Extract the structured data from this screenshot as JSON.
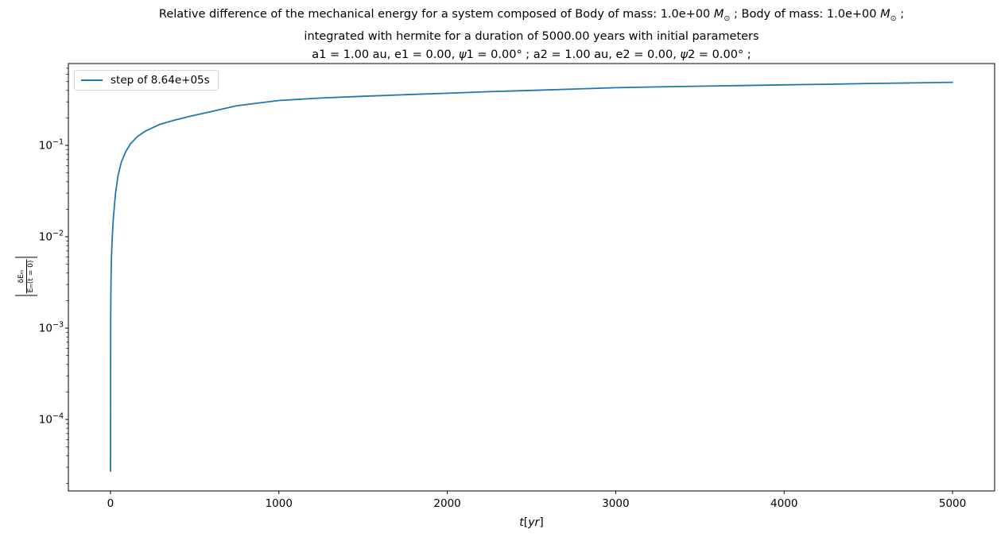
{
  "figure": {
    "title": {
      "line1_pre": "Relative difference of the mechanical energy for a system composed of Body of mass: 1.0e+00 ",
      "line1_msun1": "M",
      "line1_sun1": "⊙",
      "line1_mid": " ; Body of mass: 1.0e+00 ",
      "line1_msun2": "M",
      "line1_sun2": "⊙",
      "line1_end": " ;",
      "line2": "integrated with hermite for a duration of 5000.00 years with initial parameters",
      "line3_seg1": "a1 = 1.00 au, e1 = 0.00, ",
      "line3_psi1": "ψ",
      "line3_seg2": "1 = 0.00° ; a2 = 1.00 au, e2 = 0.00, ",
      "line3_psi2": "ψ",
      "line3_seg3": "2 = 0.00° ;"
    },
    "xlabel": {
      "t": "t",
      "open": "[",
      "yr": "yr",
      "close": "]"
    },
    "ylabel": {
      "num": "δEₘ",
      "den": "Eₘ(t = 0)"
    },
    "legend": {
      "label": "step of 8.64e+05s"
    }
  },
  "chart_data": {
    "type": "line",
    "title": "Relative difference of the mechanical energy for a system composed of Body of mass: 1.0e+00 M⊙ ; Body of mass: 1.0e+00 M⊙ ; integrated with hermite for a duration of 5000.00 years with initial parameters a1 = 1.00 au, e1 = 0.00, ψ1 = 0.00° ; a2 = 1.00 au, e2 = 0.00, ψ2 = 0.00° ;",
    "xlabel": "t[yr]",
    "ylabel": "|δEₘ/Eₘ(t = 0)|",
    "xscale": "linear",
    "yscale": "log",
    "xlim": [
      -250,
      5250
    ],
    "ylim": [
      1.65e-05,
      0.787
    ],
    "x_ticks": [
      0,
      1000,
      2000,
      3000,
      4000,
      5000
    ],
    "y_tick_exponents": [
      -1,
      -2,
      -3,
      -4
    ],
    "grid": false,
    "legend_position": "upper left",
    "legend_entries": [
      {
        "label": "step of 8.64e+05s",
        "color": "#1f77b4"
      }
    ],
    "series": [
      {
        "name": "step of 8.64e+05s",
        "color": "#1f77b4",
        "x": [
          0,
          1,
          3,
          6,
          10,
          15,
          22,
          30,
          45,
          65,
          90,
          120,
          160,
          210,
          290,
          380,
          480,
          600,
          750,
          1000,
          1250,
          1500,
          1750,
          2000,
          2250,
          2500,
          2750,
          3000,
          3250,
          3500,
          3750,
          4000,
          4250,
          4500,
          4750,
          5000
        ],
        "y": [
          2.7e-05,
          0.0012,
          0.0032,
          0.006,
          0.0095,
          0.014,
          0.0205,
          0.03,
          0.047,
          0.066,
          0.085,
          0.105,
          0.125,
          0.144,
          0.169,
          0.189,
          0.21,
          0.235,
          0.272,
          0.31,
          0.33,
          0.345,
          0.359,
          0.372,
          0.387,
          0.4,
          0.414,
          0.428,
          0.437,
          0.445,
          0.452,
          0.46,
          0.467,
          0.476,
          0.483,
          0.491
        ]
      }
    ]
  }
}
